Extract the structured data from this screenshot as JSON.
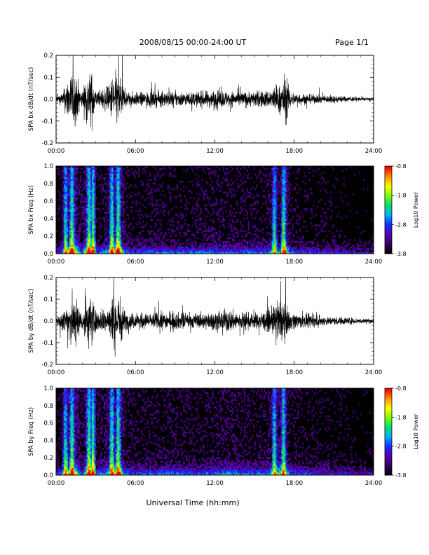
{
  "header": {
    "title": "2008/08/15  00:00-24:00 UT",
    "page": "Page 1/1"
  },
  "footer": {
    "xlabel": "Universal Time (hh:mm)"
  },
  "colors": {
    "trace": "#000000",
    "spectrogram_background": "#000000",
    "colormap": [
      "#000000",
      "#3a0063",
      "#5a00b0",
      "#1030ff",
      "#00b0ff",
      "#00e070",
      "#7aff00",
      "#ffff00",
      "#ff9000",
      "#ff0000"
    ]
  },
  "chart_data": [
    {
      "type": "line",
      "ylabel": "SPA bx dB/dt (nT/sec)",
      "xlim": [
        "00:00",
        "24:00"
      ],
      "ylim": [
        -0.2,
        0.2
      ],
      "xticks": [
        "00:00",
        "06:00",
        "12:00",
        "18:00",
        "24:00"
      ],
      "yticks": [
        "-0.2",
        "-0.1",
        "0.0",
        "0.1",
        "0.2"
      ],
      "activity_envelope": {
        "x_hours": [
          0,
          0.5,
          1.0,
          1.2,
          1.5,
          1.8,
          2.0,
          2.3,
          2.6,
          2.8,
          3.0,
          3.2,
          3.5,
          4.0,
          4.3,
          4.6,
          4.9,
          5.2,
          6,
          7,
          8,
          9,
          10,
          11,
          12,
          13,
          14,
          15,
          16,
          16.5,
          17,
          17.3,
          17.7,
          18,
          19,
          20,
          21,
          22,
          23,
          24
        ],
        "amplitude": [
          0.03,
          0.05,
          0.2,
          0.2,
          0.2,
          0.08,
          0.06,
          0.2,
          0.2,
          0.2,
          0.07,
          0.05,
          0.08,
          0.1,
          0.2,
          0.2,
          0.2,
          0.06,
          0.05,
          0.06,
          0.06,
          0.06,
          0.05,
          0.06,
          0.07,
          0.06,
          0.06,
          0.06,
          0.07,
          0.1,
          0.11,
          0.2,
          0.06,
          0.05,
          0.04,
          0.03,
          0.03,
          0.02,
          0.015,
          0.01
        ]
      }
    },
    {
      "type": "heatmap",
      "ylabel": "SPA bx Freq (Hz)",
      "xlim": [
        "00:00",
        "24:00"
      ],
      "ylim": [
        0.0,
        1.0
      ],
      "xticks": [
        "00:00",
        "06:00",
        "12:00",
        "18:00",
        "24:00"
      ],
      "yticks": [
        "0.0",
        "0.2",
        "0.4",
        "0.6",
        "0.8",
        "1.0"
      ],
      "colorbar": {
        "label": "Log10 Power",
        "range": [
          -3.8,
          -0.8
        ],
        "ticks": [
          "-0.8",
          "-1.8",
          "-2.8",
          "-3.8"
        ]
      },
      "activity_hours": [
        0.7,
        1.2,
        2.5,
        2.8,
        4.2,
        4.7,
        16.5,
        17.2
      ]
    },
    {
      "type": "line",
      "ylabel": "SPA by dB/dt (nT/sec)",
      "xlim": [
        "00:00",
        "24:00"
      ],
      "ylim": [
        -0.2,
        0.2
      ],
      "xticks": [
        "00:00",
        "06:00",
        "12:00",
        "18:00",
        "24:00"
      ],
      "yticks": [
        "-0.2",
        "-0.1",
        "0.0",
        "0.1",
        "0.2"
      ],
      "activity_envelope": {
        "x_hours": [
          0,
          0.5,
          1.0,
          1.2,
          1.5,
          1.8,
          2.0,
          2.3,
          2.6,
          2.8,
          3.0,
          3.2,
          3.5,
          4.0,
          4.3,
          4.6,
          4.9,
          5.2,
          6,
          7,
          8,
          9,
          10,
          11,
          12,
          13,
          14,
          15,
          16,
          16.5,
          17,
          17.3,
          17.7,
          18,
          19,
          20,
          21,
          22,
          23,
          24
        ],
        "amplitude": [
          0.04,
          0.07,
          0.2,
          0.2,
          0.2,
          0.09,
          0.07,
          0.2,
          0.2,
          0.2,
          0.08,
          0.06,
          0.1,
          0.12,
          0.2,
          0.2,
          0.2,
          0.07,
          0.06,
          0.06,
          0.07,
          0.07,
          0.06,
          0.06,
          0.07,
          0.09,
          0.07,
          0.06,
          0.08,
          0.12,
          0.17,
          0.14,
          0.07,
          0.06,
          0.05,
          0.04,
          0.03,
          0.03,
          0.02,
          0.02
        ]
      }
    },
    {
      "type": "heatmap",
      "ylabel": "SPA by Freq (Hz)",
      "xlim": [
        "00:00",
        "24:00"
      ],
      "ylim": [
        0.0,
        1.0
      ],
      "xticks": [
        "00:00",
        "06:00",
        "12:00",
        "18:00",
        "24:00"
      ],
      "yticks": [
        "0.0",
        "0.2",
        "0.4",
        "0.6",
        "0.8",
        "1.0"
      ],
      "colorbar": {
        "label": "Log10 Power",
        "range": [
          -3.8,
          -0.8
        ],
        "ticks": [
          "-0.8",
          "-1.8",
          "-2.8",
          "-3.8"
        ]
      },
      "activity_hours": [
        0.7,
        1.2,
        2.5,
        2.8,
        4.2,
        4.7,
        16.5,
        17.2
      ]
    }
  ]
}
